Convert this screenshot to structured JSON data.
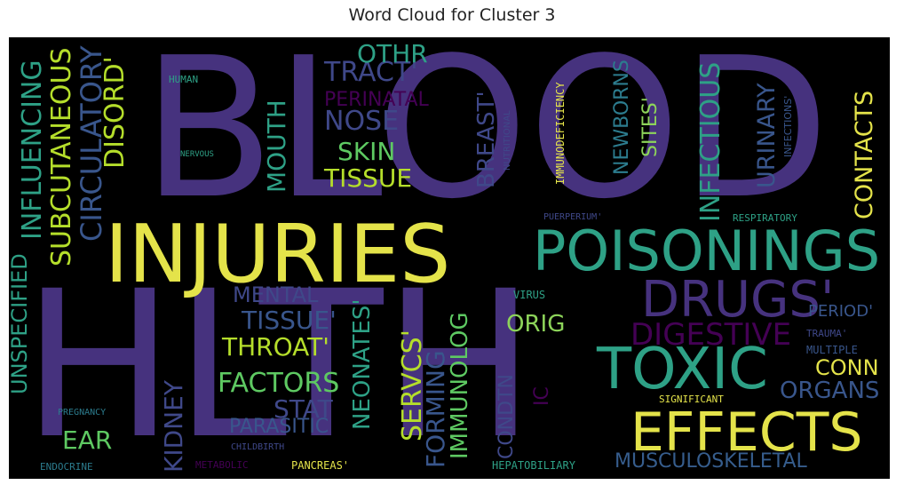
{
  "title": "Word Cloud for Cluster 3",
  "words": [
    "BLOOD",
    "HLTH",
    "INJURIES",
    "POISONINGS",
    "TOXIC",
    "EFFECTS",
    "DRUGS'",
    "DIGESTIVE",
    "INFECTIOUS",
    "CONTACTS",
    "URINARY",
    "SITES'",
    "NEWBORNS",
    "IMMUNODEFICIENCY",
    "INFECTIONS'",
    "BREAST'",
    "NUTRITIONAL",
    "TRACT'",
    "PERINATAL",
    "NOSE",
    "SKIN",
    "TISSUE",
    "OTHR",
    "MOUTH",
    "DISORD'",
    "CIRCULATORY",
    "SUBCUTANEOUS",
    "INFLUENCING",
    "UNSPECIFIED",
    "HUMAN",
    "NERVOUS",
    "MENTAL",
    "TISSUE'",
    "THROAT'",
    "FACTORS",
    "STAT",
    "PARASITIC",
    "NEONATES'",
    "SERVCS'",
    "FORMING",
    "IMMUNOLOG",
    "ORIG",
    "VIRUS",
    "CONDTN",
    "IC",
    "KIDNEY",
    "EAR",
    "PREGNANCY",
    "CHILDBIRTH",
    "ENDOCRINE",
    "METABOLIC",
    "PANCREAS'",
    "HEPATOBILIARY",
    "MUSCULOSKELETAL",
    "ORGANS",
    "CONN",
    "SIGNIFICANT",
    "MULTIPLE",
    "TRAUMA'",
    "PERIOD'",
    "RESPIRATORY",
    "PUERPERIUM'"
  ]
}
